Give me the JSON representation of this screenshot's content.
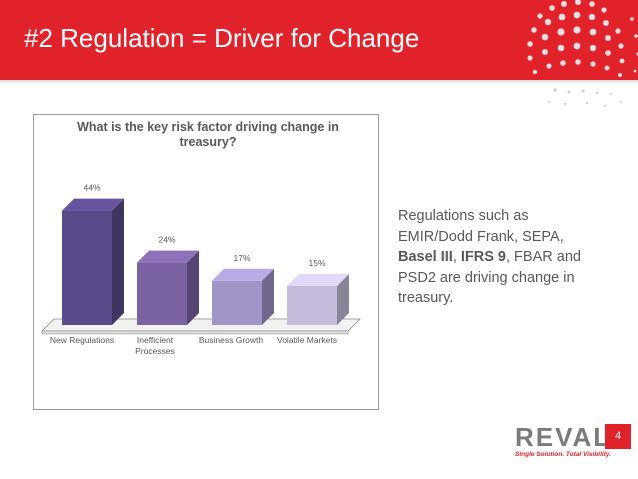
{
  "slide": {
    "title": "#2 Regulation = Driver for Change",
    "page_number": "4"
  },
  "callout": {
    "part1": "Regulations such as EMIR/Dodd Frank, SEPA, ",
    "bold1": "Basel III",
    "sep": ", ",
    "bold2": "IFRS 9",
    "part2": ", FBAR and PSD2 are driving change in treasury."
  },
  "logo": {
    "word": "REVAL",
    "tagline": "Single Solution. Total Visibility."
  },
  "colors": {
    "brand_red": "#e2222b",
    "bars": [
      "#5b4a8a",
      "#7b62a3",
      "#a194c7",
      "#c4bcd9"
    ]
  },
  "chart_data": {
    "type": "bar",
    "title": "What is the key risk factor driving change in treasury?",
    "categories": [
      "New Regulations",
      "Inefficient Processes",
      "Business Growth",
      "Volatile Markets"
    ],
    "values": [
      44,
      24,
      17,
      15
    ],
    "value_labels": [
      "44%",
      "24%",
      "17%",
      "15%"
    ],
    "ylim": [
      0,
      50
    ],
    "grid": false,
    "legend": "none",
    "style": "3d"
  }
}
